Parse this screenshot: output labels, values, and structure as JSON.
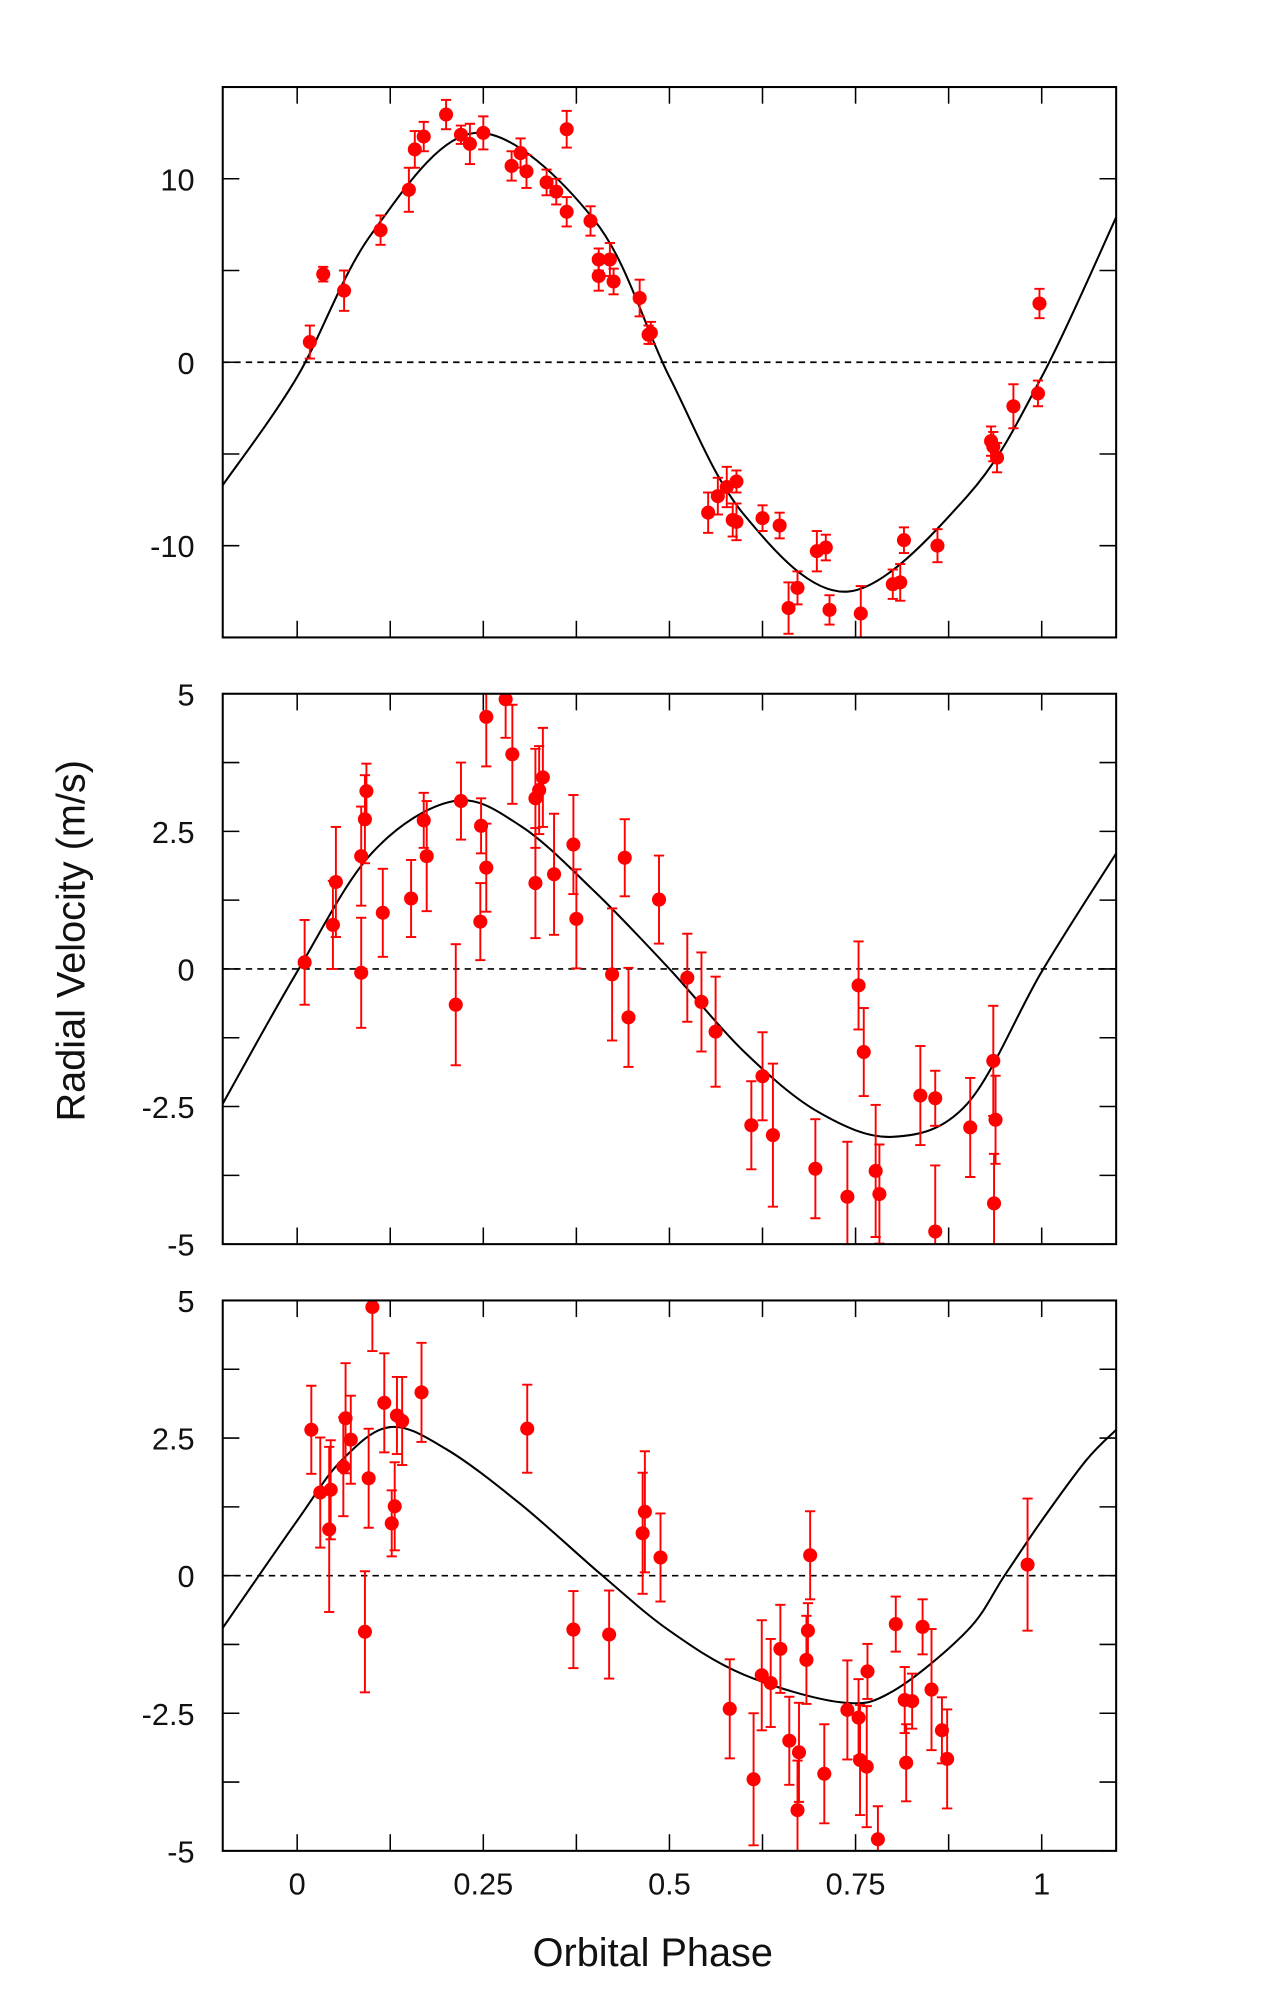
{
  "chart_data": {
    "type": "scatter",
    "xlabel": "Orbital Phase",
    "ylabel": "Radial Velocity (m/s)",
    "xlim": [
      -0.1,
      1.1
    ],
    "xticks": [
      0,
      0.25,
      0.5,
      0.75,
      1
    ],
    "xtick_labels": [
      "0",
      "0.25",
      "0.5",
      "0.75",
      "1"
    ],
    "colors": {
      "points": "#ff0000",
      "model": "#000000",
      "zero_line": "#000000"
    },
    "panels": [
      {
        "ylim": [
          -15,
          15
        ],
        "yticks": [
          10,
          0,
          -10
        ],
        "ytick_labels": [
          "10",
          "0",
          "-10"
        ],
        "minor_ystep": 5,
        "model_curve": {
          "x": [
            -0.1,
            0,
            0.1,
            0.24,
            0.4,
            0.5,
            0.6,
            0.74,
            0.9,
            1.0,
            1.1
          ],
          "y": [
            -6.7,
            -0.8,
            7.0,
            12.5,
            7.7,
            -0.8,
            -8.3,
            -12.5,
            -7.3,
            -0.8,
            7.9
          ]
        },
        "points": [
          [
            0.017,
            1.1,
            0.9
          ],
          [
            0.035,
            4.8,
            0.4
          ],
          [
            0.063,
            3.9,
            1.1
          ],
          [
            0.112,
            7.2,
            0.8
          ],
          [
            0.15,
            9.4,
            1.2
          ],
          [
            0.158,
            11.6,
            1.0
          ],
          [
            0.17,
            12.3,
            0.8
          ],
          [
            0.2,
            13.5,
            0.8
          ],
          [
            0.22,
            12.4,
            0.5
          ],
          [
            0.232,
            11.9,
            1.1
          ],
          [
            0.25,
            12.5,
            0.9
          ],
          [
            0.288,
            10.7,
            0.8
          ],
          [
            0.3,
            11.4,
            0.8
          ],
          [
            0.308,
            10.4,
            0.9
          ],
          [
            0.335,
            9.8,
            0.7
          ],
          [
            0.348,
            9.3,
            0.7
          ],
          [
            0.362,
            8.2,
            0.8
          ],
          [
            0.362,
            12.7,
            1.0
          ],
          [
            0.394,
            7.7,
            0.8
          ],
          [
            0.405,
            5.6,
            0.6
          ],
          [
            0.405,
            4.7,
            0.8
          ],
          [
            0.42,
            5.6,
            0.9
          ],
          [
            0.425,
            4.4,
            0.7
          ],
          [
            0.46,
            3.5,
            1.0
          ],
          [
            0.475,
            1.6,
            0.6
          ],
          [
            0.472,
            1.5,
            0.5
          ],
          [
            0.552,
            -8.2,
            1.1
          ],
          [
            0.565,
            -7.3,
            1.0
          ],
          [
            0.577,
            -6.8,
            1.1
          ],
          [
            0.585,
            -8.6,
            0.9
          ],
          [
            0.59,
            -6.5,
            0.6
          ],
          [
            0.59,
            -8.7,
            1.0
          ],
          [
            0.625,
            -8.5,
            0.7
          ],
          [
            0.648,
            -8.9,
            0.7
          ],
          [
            0.66,
            -13.4,
            1.4
          ],
          [
            0.672,
            -12.3,
            0.9
          ],
          [
            0.698,
            -10.3,
            1.1
          ],
          [
            0.71,
            -10.1,
            0.7
          ],
          [
            0.715,
            -13.5,
            0.8
          ],
          [
            0.757,
            -13.7,
            1.5
          ],
          [
            0.8,
            -12.1,
            0.8
          ],
          [
            0.81,
            -12.0,
            1.0
          ],
          [
            0.815,
            -9.7,
            0.7
          ],
          [
            0.86,
            -10.0,
            0.9
          ],
          [
            0.932,
            -4.3,
            0.8
          ],
          [
            0.935,
            -4.6,
            0.8
          ],
          [
            0.94,
            -5.2,
            0.8
          ],
          [
            0.962,
            -2.4,
            1.2
          ],
          [
            0.995,
            -1.7,
            0.7
          ],
          [
            0.997,
            3.2,
            0.8
          ]
        ]
      },
      {
        "ylim": [
          -5,
          5
        ],
        "yticks": [
          5,
          2.5,
          0,
          -2.5,
          -5
        ],
        "ytick_labels": [
          "5",
          "2.5",
          "0",
          "-2.5",
          "-5"
        ],
        "minor_ystep": 1.25,
        "model_curve": {
          "x": [
            -0.1,
            0,
            0.1,
            0.21,
            0.3,
            0.4,
            0.5,
            0.6,
            0.7,
            0.8,
            0.9,
            1.0,
            1.1
          ],
          "y": [
            -2.45,
            -0.05,
            2.1,
            3.05,
            2.6,
            1.4,
            0.0,
            -1.5,
            -2.6,
            -3.05,
            -2.45,
            -0.05,
            2.1
          ]
        },
        "points": [
          [
            0.01,
            0.12,
            0.77
          ],
          [
            0.048,
            0.8,
            0.8
          ],
          [
            0.052,
            1.58,
            1.0
          ],
          [
            0.086,
            -0.07,
            1.0
          ],
          [
            0.086,
            2.05,
            0.9
          ],
          [
            0.091,
            2.72,
            0.8
          ],
          [
            0.093,
            3.23,
            0.5
          ],
          [
            0.115,
            1.02,
            0.8
          ],
          [
            0.153,
            1.28,
            0.7
          ],
          [
            0.17,
            2.7,
            0.5
          ],
          [
            0.174,
            2.05,
            1.0
          ],
          [
            0.213,
            -0.65,
            1.1
          ],
          [
            0.22,
            3.05,
            0.7
          ],
          [
            0.246,
            0.86,
            0.7
          ],
          [
            0.247,
            2.6,
            0.5
          ],
          [
            0.254,
            1.84,
            0.8
          ],
          [
            0.254,
            4.58,
            0.9
          ],
          [
            0.28,
            4.9,
            0.7
          ],
          [
            0.289,
            3.9,
            0.9
          ],
          [
            0.32,
            1.56,
            1.0
          ],
          [
            0.32,
            3.1,
            0.9
          ],
          [
            0.325,
            3.25,
            0.8
          ],
          [
            0.33,
            3.48,
            0.9
          ],
          [
            0.345,
            1.72,
            1.1
          ],
          [
            0.371,
            2.26,
            0.9
          ],
          [
            0.375,
            0.91,
            0.9
          ],
          [
            0.423,
            -0.1,
            1.2
          ],
          [
            0.44,
            2.02,
            0.7
          ],
          [
            0.445,
            -0.88,
            0.9
          ],
          [
            0.486,
            1.26,
            0.8
          ],
          [
            0.524,
            -0.16,
            0.8
          ],
          [
            0.543,
            -0.6,
            0.9
          ],
          [
            0.562,
            -1.14,
            1.0
          ],
          [
            0.61,
            -2.84,
            0.8
          ],
          [
            0.625,
            -1.95,
            0.8
          ],
          [
            0.639,
            -3.02,
            1.3
          ],
          [
            0.696,
            -3.63,
            0.9
          ],
          [
            0.739,
            -4.14,
            1.0
          ],
          [
            0.754,
            -0.3,
            0.8
          ],
          [
            0.761,
            -1.51,
            0.8
          ],
          [
            0.777,
            -3.67,
            1.2
          ],
          [
            0.782,
            -4.09,
            0.9
          ],
          [
            0.837,
            -2.3,
            0.9
          ],
          [
            0.857,
            -2.35,
            0.5
          ],
          [
            0.857,
            -4.77,
            1.2
          ],
          [
            0.904,
            -2.88,
            0.9
          ],
          [
            0.935,
            -1.67,
            1.0
          ],
          [
            0.938,
            -2.74,
            0.8
          ],
          [
            0.936,
            -4.26,
            0.9
          ]
        ]
      },
      {
        "ylim": [
          -5,
          5
        ],
        "yticks": [
          5,
          2.5,
          0,
          -2.5,
          -5
        ],
        "ytick_labels": [
          "5",
          "2.5",
          "0",
          "-2.5",
          "-5"
        ],
        "minor_ystep": 1.25,
        "model_curve": {
          "x": [
            -0.1,
            0,
            0.06,
            0.125,
            0.2,
            0.3,
            0.41,
            0.5,
            0.6,
            0.73,
            0.8,
            0.9,
            0.95,
            1.0,
            1.06,
            1.1
          ],
          "y": [
            -0.95,
            1.0,
            2.1,
            2.7,
            2.3,
            1.3,
            0.0,
            -1.0,
            -1.8,
            -2.3,
            -2.1,
            -1.0,
            0.0,
            1.0,
            2.1,
            2.65
          ]
        },
        "points": [
          [
            0.019,
            2.65,
            0.8
          ],
          [
            0.031,
            1.51,
            1.0
          ],
          [
            0.043,
            0.84,
            1.5
          ],
          [
            0.045,
            1.56,
            0.9
          ],
          [
            0.062,
            1.98,
            0.9
          ],
          [
            0.065,
            2.86,
            1.0
          ],
          [
            0.072,
            2.47,
            0.8
          ],
          [
            0.091,
            -1.02,
            1.1
          ],
          [
            0.096,
            1.77,
            0.9
          ],
          [
            0.101,
            4.88,
            0.8
          ],
          [
            0.117,
            3.14,
            0.9
          ],
          [
            0.127,
            0.95,
            0.6
          ],
          [
            0.131,
            1.26,
            0.8
          ],
          [
            0.134,
            2.91,
            0.7
          ],
          [
            0.141,
            2.81,
            0.8
          ],
          [
            0.167,
            3.33,
            0.9
          ],
          [
            0.309,
            2.67,
            0.8
          ],
          [
            0.371,
            -0.98,
            0.7
          ],
          [
            0.419,
            -1.07,
            0.8
          ],
          [
            0.464,
            0.77,
            1.1
          ],
          [
            0.467,
            1.16,
            1.1
          ],
          [
            0.488,
            0.33,
            0.8
          ],
          [
            0.581,
            -2.42,
            0.9
          ],
          [
            0.613,
            -3.7,
            1.2
          ],
          [
            0.624,
            -1.81,
            1.0
          ],
          [
            0.636,
            -1.95,
            0.8
          ],
          [
            0.649,
            -1.33,
            0.8
          ],
          [
            0.661,
            -3.0,
            0.8
          ],
          [
            0.672,
            -4.26,
            0.9
          ],
          [
            0.674,
            -3.21,
            0.9
          ],
          [
            0.684,
            -1.53,
            0.8
          ],
          [
            0.686,
            -1.0,
            0.5
          ],
          [
            0.689,
            0.37,
            0.8
          ],
          [
            0.708,
            -3.6,
            0.9
          ],
          [
            0.739,
            -2.44,
            0.9
          ],
          [
            0.754,
            -2.58,
            0.7
          ],
          [
            0.756,
            -3.35,
            1.0
          ],
          [
            0.765,
            -3.47,
            1.1
          ],
          [
            0.766,
            -1.74,
            0.5
          ],
          [
            0.78,
            -4.79,
            0.6
          ],
          [
            0.804,
            -0.88,
            0.5
          ],
          [
            0.816,
            -2.26,
            0.6
          ],
          [
            0.818,
            -3.4,
            0.7
          ],
          [
            0.826,
            -2.28,
            0.5
          ],
          [
            0.84,
            -0.93,
            0.5
          ],
          [
            0.852,
            -2.07,
            1.1
          ],
          [
            0.866,
            -2.81,
            0.6
          ],
          [
            0.873,
            -3.33,
            0.9
          ],
          [
            0.981,
            0.2,
            1.2
          ]
        ]
      }
    ]
  }
}
